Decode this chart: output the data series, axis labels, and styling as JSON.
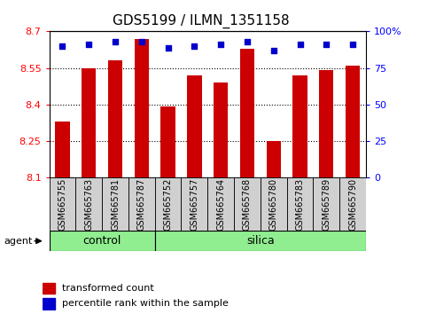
{
  "title": "GDS5199 / ILMN_1351158",
  "samples": [
    "GSM665755",
    "GSM665763",
    "GSM665781",
    "GSM665787",
    "GSM665752",
    "GSM665757",
    "GSM665764",
    "GSM665768",
    "GSM665780",
    "GSM665783",
    "GSM665789",
    "GSM665790"
  ],
  "groups": [
    "control",
    "control",
    "control",
    "control",
    "silica",
    "silica",
    "silica",
    "silica",
    "silica",
    "silica",
    "silica",
    "silica"
  ],
  "transformed_count": [
    8.33,
    8.55,
    8.58,
    8.67,
    8.39,
    8.52,
    8.49,
    8.63,
    8.25,
    8.52,
    8.54,
    8.56
  ],
  "percentile_rank": [
    90,
    91,
    93,
    93,
    89,
    90,
    91,
    93,
    87,
    91,
    91,
    91
  ],
  "ymin": 8.1,
  "ymax": 8.7,
  "yticks": [
    8.1,
    8.25,
    8.4,
    8.55,
    8.7
  ],
  "right_yticks": [
    0,
    25,
    50,
    75,
    100
  ],
  "bar_color": "#cc0000",
  "dot_color": "#0000cc",
  "group_bar_color": "#90ee90",
  "agent_label": "agent",
  "legend_tc": "transformed count",
  "legend_pr": "percentile rank within the sample",
  "title_fontsize": 11,
  "tick_fontsize": 8,
  "label_fontsize": 7,
  "group_fontsize": 9
}
